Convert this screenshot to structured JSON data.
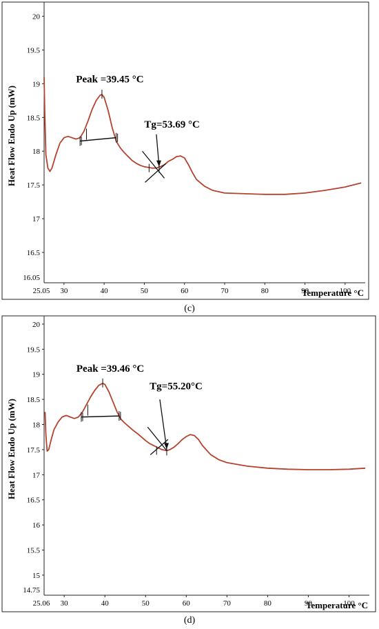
{
  "chart_data": [
    {
      "type": "line",
      "panel_label": "(c)",
      "xlabel": "Temperature °C",
      "ylabel": "Heat Flow Endo Up (mW)",
      "xlim": [
        25.05,
        105
      ],
      "ylim": [
        16.05,
        20.2
      ],
      "x_start_label": "25.05",
      "y_min_label": "16.05",
      "xticks": [
        30,
        40,
        50,
        60,
        70,
        80,
        90,
        100
      ],
      "yticks": [
        {
          "v": 20,
          "label": "20"
        },
        {
          "v": 19.5,
          "label": "19.5"
        },
        {
          "v": 19,
          "label": "19"
        },
        {
          "v": 18.5,
          "label": "18.5"
        },
        {
          "v": 18,
          "label": "18"
        },
        {
          "v": 17.5,
          "label": "17.5"
        },
        {
          "v": 17,
          "label": "17"
        },
        {
          "v": 16.5,
          "label": "16.5"
        }
      ],
      "curve_color": "#b5412e",
      "series": [
        {
          "x": [
            25.05,
            25.2,
            25.5,
            26.0,
            26.5,
            27.0,
            28,
            29,
            30,
            31,
            32,
            33,
            34,
            35,
            36,
            37,
            38,
            39,
            39.45,
            40,
            41,
            42,
            43,
            44,
            45,
            46,
            47,
            48,
            49,
            50,
            51,
            52,
            53,
            54,
            55,
            56,
            57,
            58,
            59,
            60,
            61,
            62,
            63,
            65,
            67,
            70,
            75,
            80,
            85,
            90,
            95,
            100,
            104
          ],
          "y": [
            19.1,
            18.6,
            17.95,
            17.75,
            17.7,
            17.75,
            17.95,
            18.12,
            18.2,
            18.22,
            18.2,
            18.18,
            18.2,
            18.3,
            18.45,
            18.62,
            18.75,
            18.83,
            18.84,
            18.8,
            18.6,
            18.35,
            18.15,
            18.05,
            17.98,
            17.92,
            17.86,
            17.82,
            17.79,
            17.77,
            17.76,
            17.75,
            17.75,
            17.77,
            17.8,
            17.85,
            17.88,
            17.92,
            17.93,
            17.9,
            17.8,
            17.68,
            17.58,
            17.48,
            17.42,
            17.38,
            17.37,
            17.36,
            17.36,
            17.38,
            17.42,
            17.47,
            17.53
          ]
        }
      ],
      "peak_label": "Peak =39.45 °C",
      "tg_label": "Tg=53.69 °C",
      "peak": {
        "x": 39.45,
        "y": 18.84
      },
      "baseline": {
        "x1": 34.0,
        "y1": 18.15,
        "x2": 43.0,
        "y2": 18.2
      },
      "tg": {
        "x": 53.69,
        "y": 17.75
      },
      "tangent": {
        "x1": 49.5,
        "y1": 18.0,
        "x2": 55.0,
        "y2": 17.6
      },
      "tg_arrow_from": {
        "x": 53.0,
        "y": 18.25
      },
      "peak_label_pos": {
        "x": 33,
        "y": 19.02
      },
      "tg_label_pos": {
        "x": 50,
        "y": 18.35
      }
    },
    {
      "type": "line",
      "panel_label": "(d)",
      "xlabel": "Temperature °C",
      "ylabel": "Heat Flow Endo Up (mW)",
      "xlim": [
        25.06,
        105
      ],
      "ylim": [
        14.6,
        20.15
      ],
      "x_start_label": "25.06",
      "y_min_label": "14.75",
      "xticks": [
        30,
        40,
        50,
        60,
        70,
        80,
        90,
        100
      ],
      "yticks": [
        {
          "v": 20,
          "label": "20"
        },
        {
          "v": 19.5,
          "label": "19.5"
        },
        {
          "v": 19,
          "label": "19"
        },
        {
          "v": 18.5,
          "label": "18.5"
        },
        {
          "v": 18,
          "label": "18"
        },
        {
          "v": 17.5,
          "label": "17.5"
        },
        {
          "v": 17,
          "label": "17"
        },
        {
          "v": 16.5,
          "label": "16.5"
        },
        {
          "v": 16,
          "label": "16"
        },
        {
          "v": 15.5,
          "label": "15.5"
        },
        {
          "v": 15,
          "label": "15"
        }
      ],
      "curve_color": "#b5412e",
      "series": [
        {
          "x": [
            25.3,
            25.5,
            25.8,
            26.2,
            26.8,
            27.5,
            28.5,
            29.5,
            30.5,
            31.5,
            32.5,
            33.5,
            34.5,
            35.5,
            36.5,
            37.5,
            38.5,
            39.46,
            40,
            41,
            42,
            43,
            44,
            45,
            46,
            47,
            48,
            49,
            50,
            51,
            52,
            53,
            54,
            55.2,
            56,
            57,
            58,
            59,
            60,
            61,
            62,
            63,
            64,
            66,
            68,
            70,
            75,
            80,
            85,
            90,
            95,
            100,
            104
          ],
          "y": [
            18.25,
            17.8,
            17.47,
            17.5,
            17.7,
            17.9,
            18.05,
            18.15,
            18.18,
            18.15,
            18.12,
            18.15,
            18.25,
            18.4,
            18.55,
            18.68,
            18.78,
            18.82,
            18.8,
            18.65,
            18.45,
            18.25,
            18.1,
            18.02,
            17.95,
            17.88,
            17.82,
            17.75,
            17.68,
            17.62,
            17.58,
            17.54,
            17.5,
            17.48,
            17.5,
            17.55,
            17.62,
            17.7,
            17.76,
            17.8,
            17.78,
            17.7,
            17.58,
            17.4,
            17.3,
            17.24,
            17.17,
            17.13,
            17.11,
            17.1,
            17.1,
            17.11,
            17.13
          ]
        }
      ],
      "peak_label": "Peak =39.46 °C",
      "tg_label": "Tg=55.20°C",
      "peak": {
        "x": 39.46,
        "y": 18.82
      },
      "baseline": {
        "x1": 34.2,
        "y1": 18.15,
        "x2": 43.5,
        "y2": 18.17
      },
      "tg": {
        "x": 55.2,
        "y": 17.48
      },
      "tangent": {
        "x1": 50.5,
        "y1": 17.95,
        "x2": 55.2,
        "y2": 17.48
      },
      "tg_arrow_from": {
        "x": 53.5,
        "y": 18.5
      },
      "peak_label_pos": {
        "x": 33,
        "y": 19.05
      },
      "tg_label_pos": {
        "x": 51,
        "y": 18.7
      }
    }
  ]
}
